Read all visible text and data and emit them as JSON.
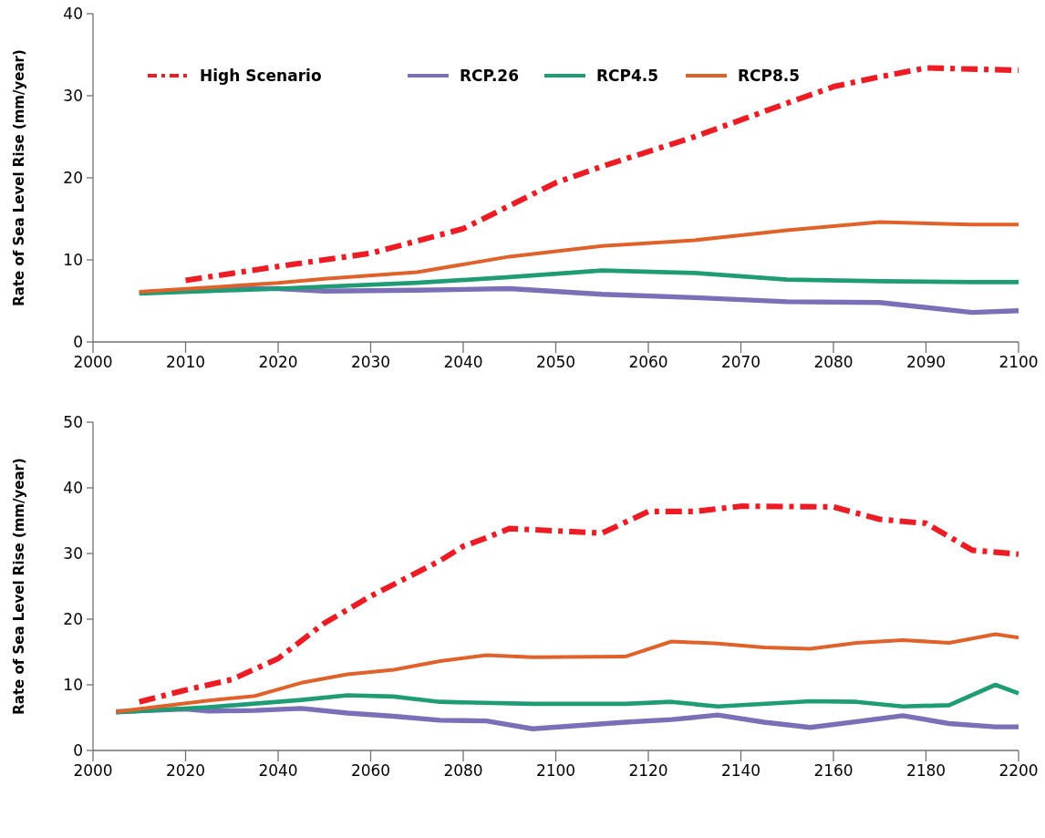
{
  "chart_data": [
    {
      "type": "line",
      "ylabel": "Rate of Sea Level Rise (mm/year)",
      "xlim": [
        2000,
        2100
      ],
      "xticks": [
        2000,
        2010,
        2020,
        2030,
        2040,
        2050,
        2060,
        2070,
        2080,
        2090,
        2100
      ],
      "ylim": [
        0,
        40
      ],
      "yticks": [
        0,
        10,
        20,
        30,
        40
      ],
      "grid": false,
      "legend": "top left",
      "marker": "none",
      "series": [
        {
          "name": "High Scenario",
          "color": "#ed1c24",
          "line_style": "dashed",
          "x": [
            2010,
            2020,
            2030,
            2040,
            2045,
            2050,
            2055,
            2065,
            2075,
            2080,
            2085,
            2090,
            2100
          ],
          "values": [
            7.5,
            9.2,
            10.8,
            13.8,
            16.6,
            19.4,
            21.4,
            25.0,
            29.1,
            31.1,
            32.3,
            33.4,
            33.1
          ]
        },
        {
          "name": "RCP.26",
          "color": "#7b6fb8",
          "line_style": "solid",
          "x": [
            2005,
            2015,
            2020,
            2025,
            2035,
            2045,
            2055,
            2065,
            2075,
            2085,
            2095,
            2100
          ],
          "values": [
            6.0,
            6.5,
            6.5,
            6.2,
            6.3,
            6.5,
            5.8,
            5.4,
            4.9,
            4.8,
            3.6,
            3.8
          ]
        },
        {
          "name": "RCP4.5",
          "color": "#1e9c74",
          "line_style": "solid",
          "x": [
            2005,
            2020,
            2035,
            2045,
            2055,
            2065,
            2075,
            2085,
            2095,
            2100
          ],
          "values": [
            5.9,
            6.5,
            7.2,
            7.9,
            8.7,
            8.4,
            7.6,
            7.4,
            7.3,
            7.3
          ]
        },
        {
          "name": "RCP8.5",
          "color": "#e0622a",
          "line_style": "solid",
          "x": [
            2005,
            2020,
            2025,
            2035,
            2045,
            2055,
            2065,
            2075,
            2085,
            2095,
            2100
          ],
          "values": [
            6.1,
            7.2,
            7.7,
            8.5,
            10.4,
            11.7,
            12.4,
            13.6,
            14.6,
            14.3,
            14.3
          ]
        }
      ]
    },
    {
      "type": "line",
      "ylabel": "Rate of Sea Level Rise (mm/year)",
      "xlim": [
        2000,
        2200
      ],
      "xticks": [
        2000,
        2020,
        2040,
        2060,
        2080,
        2100,
        2120,
        2140,
        2160,
        2180,
        2200
      ],
      "ylim": [
        0,
        50
      ],
      "yticks": [
        0,
        10,
        20,
        30,
        40,
        50
      ],
      "grid": false,
      "legend": false,
      "marker": "none",
      "series": [
        {
          "color": "#ed1c24",
          "line_style": "dashed",
          "x": [
            2010,
            2020,
            2030,
            2040,
            2050,
            2060,
            2075,
            2080,
            2085,
            2090,
            2110,
            2120,
            2130,
            2140,
            2160,
            2170,
            2180,
            2190,
            2200
          ],
          "values": [
            7.4,
            9.2,
            10.8,
            14.0,
            19.4,
            23.5,
            28.9,
            31.1,
            32.4,
            33.8,
            33.1,
            36.4,
            36.4,
            37.2,
            37.1,
            35.2,
            34.6,
            30.5,
            29.9
          ]
        },
        {
          "color": "#7b6fb8",
          "line_style": "solid",
          "x": [
            2005,
            2020,
            2025,
            2035,
            2045,
            2055,
            2065,
            2075,
            2085,
            2095,
            2115,
            2125,
            2135,
            2145,
            2155,
            2165,
            2175,
            2185,
            2195,
            2200
          ],
          "values": [
            5.9,
            6.3,
            6.0,
            6.1,
            6.4,
            5.7,
            5.2,
            4.6,
            4.5,
            3.3,
            4.3,
            4.7,
            5.4,
            4.3,
            3.5,
            4.4,
            5.3,
            4.1,
            3.6,
            3.6
          ]
        },
        {
          "color": "#1e9c74",
          "line_style": "solid",
          "x": [
            2005,
            2025,
            2045,
            2055,
            2065,
            2075,
            2095,
            2115,
            2125,
            2135,
            2155,
            2165,
            2175,
            2185,
            2195,
            2200
          ],
          "values": [
            5.8,
            6.6,
            7.7,
            8.4,
            8.2,
            7.4,
            7.1,
            7.1,
            7.4,
            6.7,
            7.5,
            7.4,
            6.7,
            6.9,
            10.0,
            8.7
          ]
        },
        {
          "color": "#e0622a",
          "line_style": "solid",
          "x": [
            2005,
            2025,
            2035,
            2045,
            2055,
            2065,
            2075,
            2085,
            2095,
            2115,
            2125,
            2135,
            2145,
            2155,
            2165,
            2175,
            2185,
            2195,
            2200
          ],
          "values": [
            5.9,
            7.6,
            8.3,
            10.3,
            11.6,
            12.3,
            13.6,
            14.5,
            14.2,
            14.3,
            16.6,
            16.3,
            15.7,
            15.5,
            16.4,
            16.8,
            16.4,
            17.7,
            17.2
          ]
        }
      ]
    }
  ]
}
